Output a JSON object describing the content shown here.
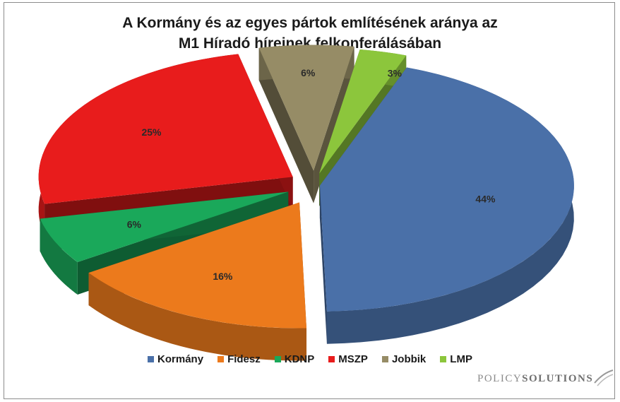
{
  "chart_data": {
    "type": "pie",
    "title": [
      "A Kormány és az egyes pártok említésének aránya az",
      "M1 Híradó híreinek felkonferálásában"
    ],
    "categories": [
      "Kormány",
      "Fidesz",
      "KDNP",
      "MSZP",
      "Jobbik",
      "LMP"
    ],
    "values": [
      44,
      16,
      6,
      25,
      6,
      3
    ],
    "labels": [
      "44%",
      "16%",
      "6%",
      "25%",
      "6%",
      "3%"
    ],
    "unit": "%",
    "colors": [
      "#4a70a8",
      "#ec7a1c",
      "#1aa85a",
      "#e81c1c",
      "#968c66",
      "#8cc63c"
    ],
    "exploded": true,
    "legend_position": "bottom"
  },
  "brand": {
    "part1": "POLICY",
    "part2": "SOLUTIONS"
  }
}
